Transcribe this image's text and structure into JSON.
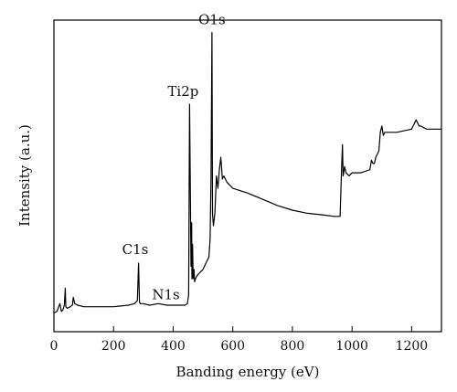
{
  "chart_data": {
    "type": "line",
    "title": "",
    "xlabel": "Banding energy (eV)",
    "ylabel": "Intensity (a.u.)",
    "xlim": [
      0,
      1300
    ],
    "ylim": [
      0,
      100
    ],
    "x_ticks": [
      0,
      200,
      400,
      600,
      800,
      1000,
      1200
    ],
    "y_ticks_shown": false,
    "grid": false,
    "legend": "none",
    "line_color": "#000000",
    "series": [
      {
        "x": [
          0,
          10,
          20,
          25,
          30,
          35,
          38,
          40,
          45,
          55,
          62,
          65,
          70,
          80,
          100,
          150,
          200,
          250,
          270,
          280,
          284,
          285,
          287,
          290,
          300,
          320,
          350,
          380,
          400,
          420,
          440,
          448,
          452,
          455,
          458,
          460,
          462,
          463,
          465,
          467,
          470,
          472,
          475,
          480,
          490,
          500,
          510,
          520,
          524,
          527,
          530,
          532,
          535,
          540,
          545,
          550,
          555,
          560,
          565,
          570,
          580,
          600,
          650,
          700,
          750,
          800,
          850,
          900,
          940,
          960,
          965,
          968,
          970,
          972,
          975,
          980,
          990,
          1000,
          1030,
          1060,
          1065,
          1070,
          1075,
          1080,
          1090,
          1095,
          1100,
          1105,
          1110,
          1120,
          1150,
          1200,
          1215,
          1220,
          1225,
          1230,
          1250,
          1300
        ],
        "y": [
          6,
          6.5,
          9,
          6.5,
          7,
          8.5,
          14,
          8,
          7.5,
          8,
          8.5,
          11,
          9,
          8.5,
          8,
          8,
          8,
          8.5,
          9,
          10,
          22,
          17,
          9.5,
          9,
          9,
          8.5,
          9,
          8.5,
          8.5,
          8.5,
          8.5,
          9,
          12,
          73,
          40,
          21,
          35,
          17,
          28,
          17,
          20,
          16,
          17,
          18,
          19,
          20,
          22,
          24,
          30,
          50,
          96,
          38,
          34,
          38,
          50,
          46,
          52,
          56,
          49,
          50,
          48,
          46,
          44.5,
          42.5,
          40.5,
          39,
          38,
          37.5,
          37,
          37,
          52,
          60,
          50,
          51,
          53,
          51,
          50,
          51,
          51,
          52,
          55,
          54,
          54,
          56,
          58,
          64,
          66,
          63,
          64,
          64,
          64,
          65,
          68,
          67,
          66,
          66,
          65,
          65
        ]
      }
    ],
    "annotations": [
      {
        "text": "C1s",
        "x": 285,
        "y": 22
      },
      {
        "text": "N1s",
        "x": 400,
        "y": 9
      },
      {
        "text": "Ti2p",
        "x": 458,
        "y": 73
      },
      {
        "text": "O1s",
        "x": 530,
        "y": 96
      }
    ]
  }
}
